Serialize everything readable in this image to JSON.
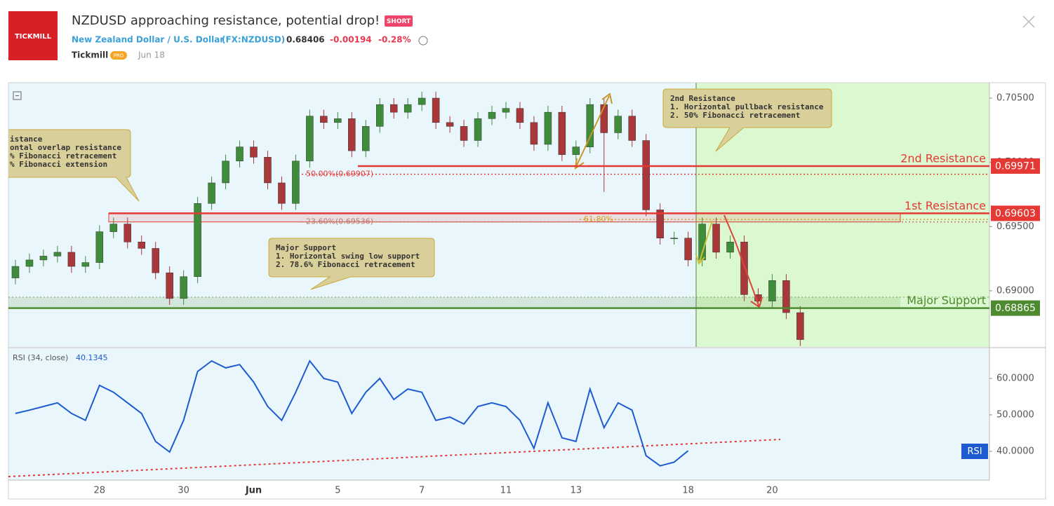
{
  "header": {
    "logo": "TICKMILL",
    "title": "NZDUSD approaching resistance, potential drop!",
    "badge": "SHORT",
    "instrument": "New Zealand Dollar / U.S. Dollar",
    "symbol": "(FX:NZDUSD)",
    "price": "0.68406",
    "change": "-0.00194",
    "change_pct": "-0.28%",
    "author": "Tickmill",
    "author_badge": "PRO",
    "date": "Jun 18"
  },
  "chart_data": {
    "type": "candlestick",
    "categories": [
      null,
      null,
      null,
      null,
      null,
      null,
      "28",
      null,
      null,
      null,
      null,
      null,
      "30",
      null,
      null,
      null,
      null,
      "Jun",
      null,
      null,
      null,
      null,
      null,
      "5",
      null,
      null,
      null,
      null,
      null,
      "7",
      null,
      null,
      null,
      null,
      null,
      "11",
      null,
      null,
      null,
      null,
      "13",
      null,
      null,
      null,
      null,
      null,
      null,
      null,
      "18",
      null,
      null,
      null,
      null,
      null,
      "20",
      null,
      null,
      null,
      null,
      null,
      null,
      null,
      null,
      null,
      null,
      null,
      null,
      null,
      null,
      null
    ],
    "open": [
      0.691,
      0.6919,
      0.6924,
      0.6927,
      0.693,
      0.6919,
      0.6922,
      0.6946,
      0.6952,
      0.6938,
      0.6933,
      0.6914,
      0.6894,
      0.6911,
      0.6968,
      0.6984,
      0.7001,
      0.7012,
      0.7004,
      0.6984,
      0.6968,
      0.7001,
      0.7036,
      0.7031,
      0.7034,
      0.7009,
      0.7028,
      0.7045,
      0.7039,
      0.7045,
      0.705,
      0.7031,
      0.7028,
      0.7017,
      0.7034,
      0.7039,
      0.7042,
      0.7031,
      0.7014,
      0.7039,
      0.7006,
      0.7012,
      0.7045,
      0.7023,
      0.7036,
      0.7017,
      0.6963,
      0.6941,
      0.6941,
      0.6924,
      0.6952,
      0.693,
      0.6938,
      0.6897,
      0.6892,
      0.6908,
      0.6883,
      null,
      null,
      null,
      null,
      null,
      null,
      null,
      null,
      null,
      null,
      null,
      null,
      null
    ],
    "high": [
      0.6924,
      0.6929,
      0.6932,
      0.6935,
      0.6935,
      0.6927,
      0.6951,
      0.6957,
      0.6957,
      0.6943,
      0.6938,
      0.6919,
      0.6916,
      0.6973,
      0.6989,
      0.7006,
      0.7017,
      0.7017,
      0.7009,
      0.6989,
      0.7006,
      0.7041,
      0.7041,
      0.7039,
      0.7039,
      0.7033,
      0.705,
      0.705,
      0.705,
      0.7055,
      0.7055,
      0.7036,
      0.7033,
      0.7039,
      0.7044,
      0.7047,
      0.7047,
      0.7036,
      0.7044,
      0.7044,
      0.7017,
      0.705,
      0.705,
      0.7041,
      0.7041,
      0.7022,
      0.6968,
      0.6946,
      0.6946,
      0.6957,
      0.6957,
      0.6943,
      0.6943,
      0.6902,
      0.6913,
      0.6913,
      0.6888,
      null,
      null,
      null,
      null,
      null,
      null,
      null,
      null,
      null,
      null,
      null,
      null,
      null
    ],
    "low": [
      0.6905,
      0.6914,
      0.6919,
      0.6922,
      0.6914,
      0.6914,
      0.6917,
      0.6941,
      0.6933,
      0.6928,
      0.6909,
      0.6889,
      0.6889,
      0.6906,
      0.6963,
      0.6979,
      0.6996,
      0.6999,
      0.6979,
      0.6963,
      0.6963,
      0.6996,
      0.7026,
      0.7026,
      0.7004,
      0.7004,
      0.7023,
      0.7034,
      0.7034,
      0.704,
      0.7026,
      0.7023,
      0.7012,
      0.7012,
      0.7029,
      0.7034,
      0.7026,
      0.7009,
      0.7009,
      0.7001,
      0.7001,
      0.7007,
      0.6977,
      0.7018,
      0.7012,
      0.6958,
      0.6936,
      0.6936,
      0.6919,
      0.6919,
      0.6925,
      0.6925,
      0.6892,
      0.6887,
      0.6887,
      0.6878,
      0.6857,
      null,
      null,
      null,
      null,
      null,
      null,
      null,
      null,
      null,
      null,
      null,
      null,
      null
    ],
    "close": [
      0.6919,
      0.6924,
      0.6927,
      0.693,
      0.6919,
      0.6922,
      0.6946,
      0.6952,
      0.6938,
      0.6933,
      0.6914,
      0.6894,
      0.6911,
      0.6968,
      0.6984,
      0.7001,
      0.7012,
      0.7004,
      0.6984,
      0.6968,
      0.7001,
      0.7036,
      0.7031,
      0.7034,
      0.7009,
      0.7028,
      0.7045,
      0.7039,
      0.7045,
      0.705,
      0.7031,
      0.7028,
      0.7017,
      0.7034,
      0.7039,
      0.7042,
      0.7031,
      0.7014,
      0.7039,
      0.7006,
      0.7012,
      0.7045,
      0.7023,
      0.7036,
      0.7017,
      0.6963,
      0.6941,
      0.6941,
      0.6924,
      0.6952,
      0.693,
      0.6938,
      0.6897,
      0.6892,
      0.6908,
      0.6883,
      0.6862,
      null,
      null,
      null,
      null,
      null,
      null,
      null,
      null,
      null,
      null,
      null,
      null,
      null
    ],
    "up_color": "#3f8d3a",
    "down_color": "#a8383a",
    "ylim": [
      0.68563,
      0.7062
    ],
    "yticks": [
      {
        "value": 0.69,
        "label": "0.69000"
      },
      {
        "value": 0.695,
        "label": "0.69500"
      },
      {
        "value": 0.7,
        "label": "0.70000"
      },
      {
        "value": 0.705,
        "label": "0.70500"
      }
    ],
    "levels": [
      {
        "name": "2nd Resistance",
        "value": 0.69971,
        "color": "#e53935"
      },
      {
        "name": "1st Resistance",
        "value": 0.69603,
        "color": "#e53935"
      },
      {
        "name": "Major Support",
        "value": 0.68865,
        "color": "#4e8a2f"
      }
    ],
    "fib_levels": [
      {
        "label": "50.00%(0.69907)",
        "value": 0.69907,
        "color": "#e53935"
      },
      {
        "label": "23.60%(0.69536)",
        "value": 0.69536,
        "color": "#c07a6a"
      },
      {
        "label": "61.80%",
        "value": 0.69556,
        "color": "#d9a12b"
      }
    ],
    "annotations": [
      {
        "lines": [
          "istance",
          "ontal overlap resistance",
          "% Fibonacci retracement",
          "% Fibonacci extension"
        ]
      },
      {
        "lines": [
          "2nd Resistance",
          "1. Horizontal pullback resistance",
          "2. 50% Fibonacci retracement"
        ]
      },
      {
        "lines": [
          "Major Support",
          "1. Horizontal swing low support",
          "2. 78.6% Fibonacci retracement"
        ]
      }
    ],
    "indicator": {
      "type": "line",
      "title": "RSI (34, close)",
      "current_value": 40.1345,
      "badge": "RSI",
      "color": "#1e5bd0",
      "values": [
        50.4,
        51.3,
        52.3,
        53.3,
        50.4,
        48.5,
        58.1,
        56.2,
        53.3,
        50.4,
        42.7,
        39.8,
        48.5,
        61.9,
        64.8,
        62.9,
        63.8,
        59.0,
        52.3,
        48.5,
        56.2,
        64.8,
        60.0,
        59.0,
        50.4,
        56.2,
        60.0,
        54.2,
        57.1,
        56.2,
        48.5,
        49.4,
        47.5,
        52.3,
        53.3,
        52.3,
        48.5,
        40.8,
        53.3,
        43.7,
        42.7,
        57.1,
        46.5,
        53.3,
        51.3,
        38.8,
        36.0,
        37.0,
        40.1345,
        null,
        null,
        null,
        null,
        null,
        null,
        null,
        null,
        null,
        null,
        null,
        null,
        null,
        null,
        null,
        null,
        null,
        null,
        null,
        null,
        null,
        null
      ],
      "ylim": [
        32.1,
        68.27
      ],
      "yticks": [
        {
          "value": 40,
          "label": "40.0000"
        },
        {
          "value": 50,
          "label": "50.0000"
        },
        {
          "value": 60,
          "label": "60.0000"
        }
      ]
    }
  }
}
